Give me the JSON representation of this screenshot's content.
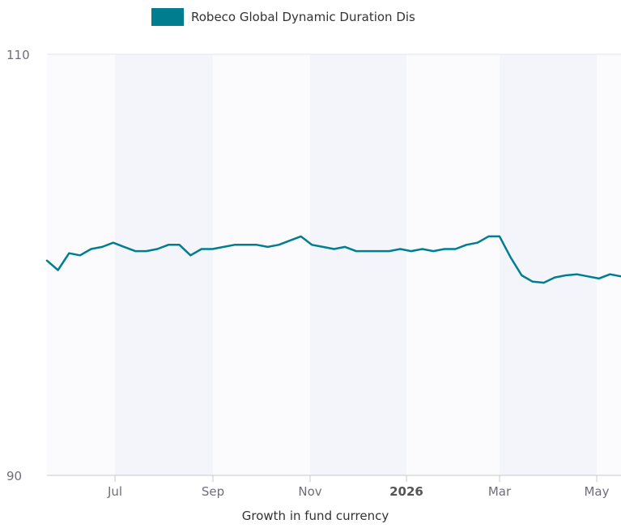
{
  "legend": {
    "label": "Robeco Global Dynamic Duration Dis",
    "color": "#007e8f"
  },
  "caption": "Growth in fund currency",
  "chart_data": {
    "type": "line",
    "ylim": [
      90,
      110
    ],
    "y_ticks": [
      90,
      110
    ],
    "x_ticks": [
      {
        "label": "Jul",
        "bold": false
      },
      {
        "label": "Sep",
        "bold": false
      },
      {
        "label": "Nov",
        "bold": false
      },
      {
        "label": "2026",
        "bold": true
      },
      {
        "label": "Mar",
        "bold": false
      },
      {
        "label": "May",
        "bold": false
      }
    ],
    "shaded_bands": [
      "Jul–Sep",
      "Nov–2026",
      "Mar–May"
    ],
    "series": [
      {
        "name": "Robeco Global Dynamic Duration Dis",
        "color": "#007e8f",
        "values": [
          100.2,
          99.75,
          100.55,
          100.45,
          100.75,
          100.85,
          101.05,
          100.85,
          100.65,
          100.65,
          100.75,
          100.95,
          100.95,
          100.45,
          100.75,
          100.75,
          100.85,
          100.95,
          100.95,
          100.95,
          100.85,
          100.95,
          101.15,
          101.35,
          100.95,
          100.85,
          100.75,
          100.85,
          100.65,
          100.65,
          100.65,
          100.65,
          100.75,
          100.65,
          100.75,
          100.65,
          100.75,
          100.75,
          100.95,
          101.05,
          101.35,
          101.35,
          100.35,
          99.5,
          99.2,
          99.15,
          99.4,
          99.5,
          99.55,
          99.45,
          99.35,
          99.55,
          99.45
        ]
      }
    ]
  }
}
